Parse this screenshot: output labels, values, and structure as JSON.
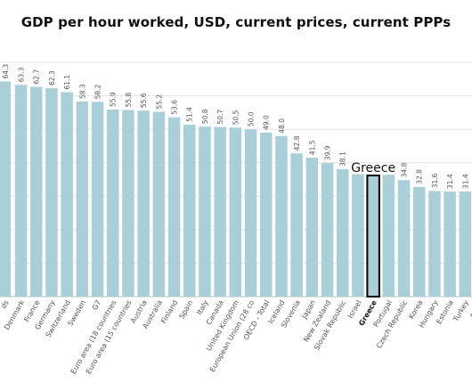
{
  "chart_data": {
    "type": "bar",
    "title": "GDP per hour worked, USD, current prices, current PPPs",
    "categories": [
      "Denmark",
      "France",
      "Germany",
      "Switzerland",
      "Sweden",
      "G7",
      "Euro area (18 countries",
      "Euro area (15 countries",
      "Austria",
      "Australia",
      "Finland",
      "Spain",
      "Italy",
      "Canada",
      "United Kingdom",
      "European Union (28 co",
      "OECD - Total",
      "Iceland",
      "Slovenia",
      "Japan",
      "New Zealand",
      "Slovak Republic",
      "Israel",
      "Greece",
      "Portugal",
      "Czech Republic",
      "Korea",
      "Hungary",
      "Estonia",
      "Turkey"
    ],
    "values": [
      63.3,
      62.7,
      62.3,
      61.1,
      58.3,
      58.2,
      55.9,
      55.8,
      55.6,
      55.2,
      53.6,
      51.4,
      50.8,
      50.7,
      50.5,
      50.0,
      49.0,
      48.0,
      42.8,
      41.5,
      39.9,
      38.1,
      null,
      null,
      null,
      34.8,
      32.8,
      31.6,
      31.4,
      31.4
    ],
    "value_labels": [
      "63.3",
      "62.7",
      "62.3",
      "61.1",
      "58.3",
      "58.2",
      "55.9",
      "55.8",
      "55.6",
      "55.2",
      "53.6",
      "51.4",
      "50.8",
      "50.7",
      "50.5",
      "50.0",
      "49.0",
      "48.0",
      "42.8",
      "41.5",
      "39.9",
      "38.1",
      "",
      "",
      "",
      "34.8",
      "32.8",
      "31.6",
      "31.4",
      "31.4"
    ],
    "partial": {
      "left_bar": {
        "category": "ds",
        "value": 64.3,
        "value_label": "64.3"
      },
      "right_category": "Polan"
    },
    "estimated_heights": {
      "Israel": 36.6,
      "Greece": 36.2,
      "Portugal": 36.4
    },
    "highlight": {
      "category": "Greece",
      "annotation": "Greece",
      "color": "#000000"
    },
    "ylim": [
      0,
      78
    ],
    "grid": true,
    "bar_color": "#a9cfd8",
    "xlabel": "",
    "ylabel": ""
  }
}
